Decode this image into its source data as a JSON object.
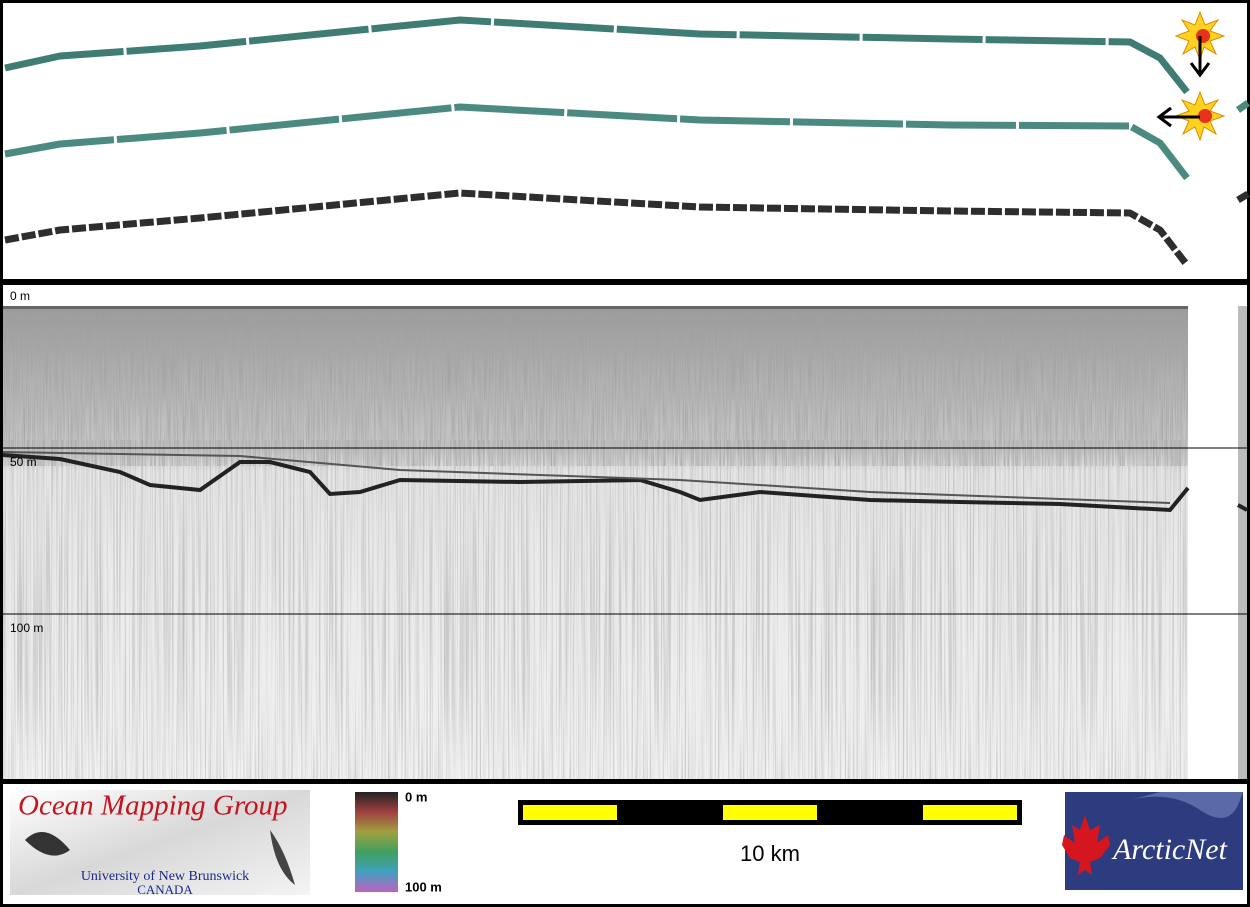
{
  "profile": {
    "depth_labels": [
      "0 m",
      "50 m",
      "100 m"
    ]
  },
  "logo": {
    "title": "Ocean Mapping Group",
    "university": "University of New Brunswick",
    "country": "CANADA"
  },
  "colorbar": {
    "top_label": "0 m",
    "bottom_label": "100 m"
  },
  "scale_bar": {
    "label": "10 km"
  },
  "partner_logo": {
    "label": "ArcticNet"
  }
}
